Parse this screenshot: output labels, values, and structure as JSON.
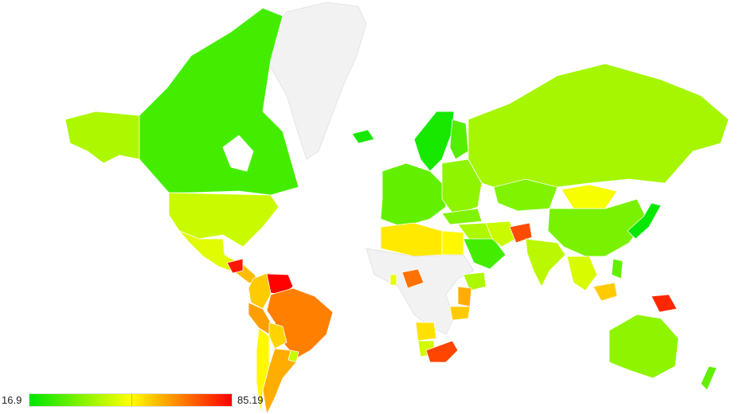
{
  "legend": {
    "min_label": "16.9",
    "max_label": "85.19",
    "min_value": 16.9,
    "max_value": 85.19,
    "color_low": "#00e600",
    "color_mid": "#ffff00",
    "color_high": "#ff0000",
    "no_data_color": "#f2f2f2"
  },
  "regions": [
    {
      "name": "canada",
      "value": 26
    },
    {
      "name": "alaska",
      "value": 40
    },
    {
      "name": "usa",
      "value": 44
    },
    {
      "name": "mexico",
      "value": 47
    },
    {
      "name": "central-america",
      "value": 60
    },
    {
      "name": "honduras",
      "value": 82
    },
    {
      "name": "colombia",
      "value": 58
    },
    {
      "name": "venezuela",
      "value": 85
    },
    {
      "name": "brazil",
      "value": 68
    },
    {
      "name": "peru",
      "value": 64
    },
    {
      "name": "bolivia",
      "value": 57
    },
    {
      "name": "argentina",
      "value": 62
    },
    {
      "name": "chile",
      "value": 52
    },
    {
      "name": "uruguay",
      "value": 44
    },
    {
      "name": "greenland",
      "value": null
    },
    {
      "name": "iceland",
      "value": 20
    },
    {
      "name": "scandinavia",
      "value": 20
    },
    {
      "name": "finland",
      "value": 28
    },
    {
      "name": "western-europe",
      "value": 30
    },
    {
      "name": "eastern-europe",
      "value": 36
    },
    {
      "name": "russia",
      "value": 39
    },
    {
      "name": "kazakhstan",
      "value": 34
    },
    {
      "name": "mongolia",
      "value": 50
    },
    {
      "name": "china",
      "value": 33
    },
    {
      "name": "japan",
      "value": 18
    },
    {
      "name": "turkey",
      "value": 34
    },
    {
      "name": "middle-east",
      "value": 40
    },
    {
      "name": "saudi-arabia",
      "value": 26
    },
    {
      "name": "iran",
      "value": 44
    },
    {
      "name": "afghanistan",
      "value": 75
    },
    {
      "name": "india",
      "value": 42
    },
    {
      "name": "southeast-asia",
      "value": 46
    },
    {
      "name": "philippines",
      "value": 30
    },
    {
      "name": "borneo",
      "value": 58
    },
    {
      "name": "new-guinea",
      "value": 80
    },
    {
      "name": "australia",
      "value": 36
    },
    {
      "name": "new-zealand",
      "value": 30
    },
    {
      "name": "north-africa",
      "value": 54
    },
    {
      "name": "egypt",
      "value": 52
    },
    {
      "name": "africa-no-data",
      "value": null
    },
    {
      "name": "nigeria",
      "value": 70
    },
    {
      "name": "ghana",
      "value": 48
    },
    {
      "name": "ethiopia",
      "value": 40
    },
    {
      "name": "kenya",
      "value": 62
    },
    {
      "name": "tanzania",
      "value": 58
    },
    {
      "name": "angola",
      "value": 55
    },
    {
      "name": "namibia",
      "value": 45
    },
    {
      "name": "south-africa",
      "value": 76
    }
  ]
}
